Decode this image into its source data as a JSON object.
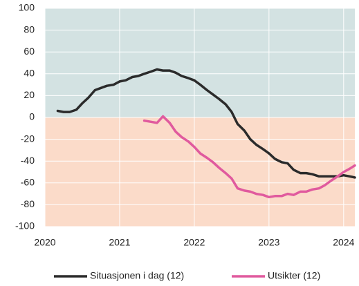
{
  "chart_data": {
    "type": "line",
    "x": [
      2020.17,
      2020.25,
      2020.33,
      2020.42,
      2020.5,
      2020.58,
      2020.67,
      2020.75,
      2020.83,
      2020.92,
      2021.0,
      2021.08,
      2021.17,
      2021.25,
      2021.33,
      2021.42,
      2021.5,
      2021.58,
      2021.67,
      2021.75,
      2021.83,
      2021.92,
      2022.0,
      2022.08,
      2022.17,
      2022.25,
      2022.33,
      2022.42,
      2022.5,
      2022.58,
      2022.67,
      2022.75,
      2022.83,
      2022.92,
      2023.0,
      2023.08,
      2023.17,
      2023.25,
      2023.33,
      2023.42,
      2023.5,
      2023.58,
      2023.67,
      2023.75,
      2023.83,
      2023.92,
      2024.0,
      2024.08,
      2024.15
    ],
    "series": [
      {
        "name": "Situasjonen i dag (12)",
        "color": "#2b2b2b",
        "values": [
          6,
          5,
          5,
          7,
          13,
          18,
          25,
          27,
          29,
          30,
          33,
          34,
          37,
          38,
          40,
          42,
          44,
          43,
          43,
          41,
          38,
          36,
          34,
          30,
          25,
          21,
          17,
          12,
          5,
          -6,
          -12,
          -20,
          -25,
          -29,
          -33,
          -38,
          -41,
          -42,
          -48,
          -51,
          -51,
          -52,
          -54,
          -54,
          -54,
          -54,
          -53,
          -54,
          -55
        ]
      },
      {
        "name": "Utsikter (12)",
        "color": "#e05a9e",
        "values": [
          null,
          null,
          null,
          null,
          null,
          null,
          null,
          null,
          null,
          null,
          null,
          null,
          null,
          null,
          -3,
          -4,
          -5,
          1,
          -5,
          -13,
          -18,
          -22,
          -27,
          -33,
          -37,
          -41,
          -46,
          -51,
          -56,
          -65,
          -67,
          -68,
          -70,
          -71,
          -73,
          -72,
          -72,
          -70,
          -71,
          -68,
          -68,
          -66,
          -65,
          -62,
          -58,
          -54,
          -50,
          -47,
          -44
        ]
      }
    ],
    "xlim": [
      2020,
      2024.15
    ],
    "xticks": [
      2020,
      2021,
      2022,
      2023,
      2024
    ],
    "ylim": [
      -100,
      100
    ],
    "yticks": [
      -100,
      -80,
      -60,
      -40,
      -20,
      0,
      20,
      40,
      60,
      80,
      100
    ],
    "grid": true,
    "legend": "bottom",
    "background_colors": {
      "positive": "#d3e2e2",
      "negative": "#fbdbc9"
    }
  }
}
